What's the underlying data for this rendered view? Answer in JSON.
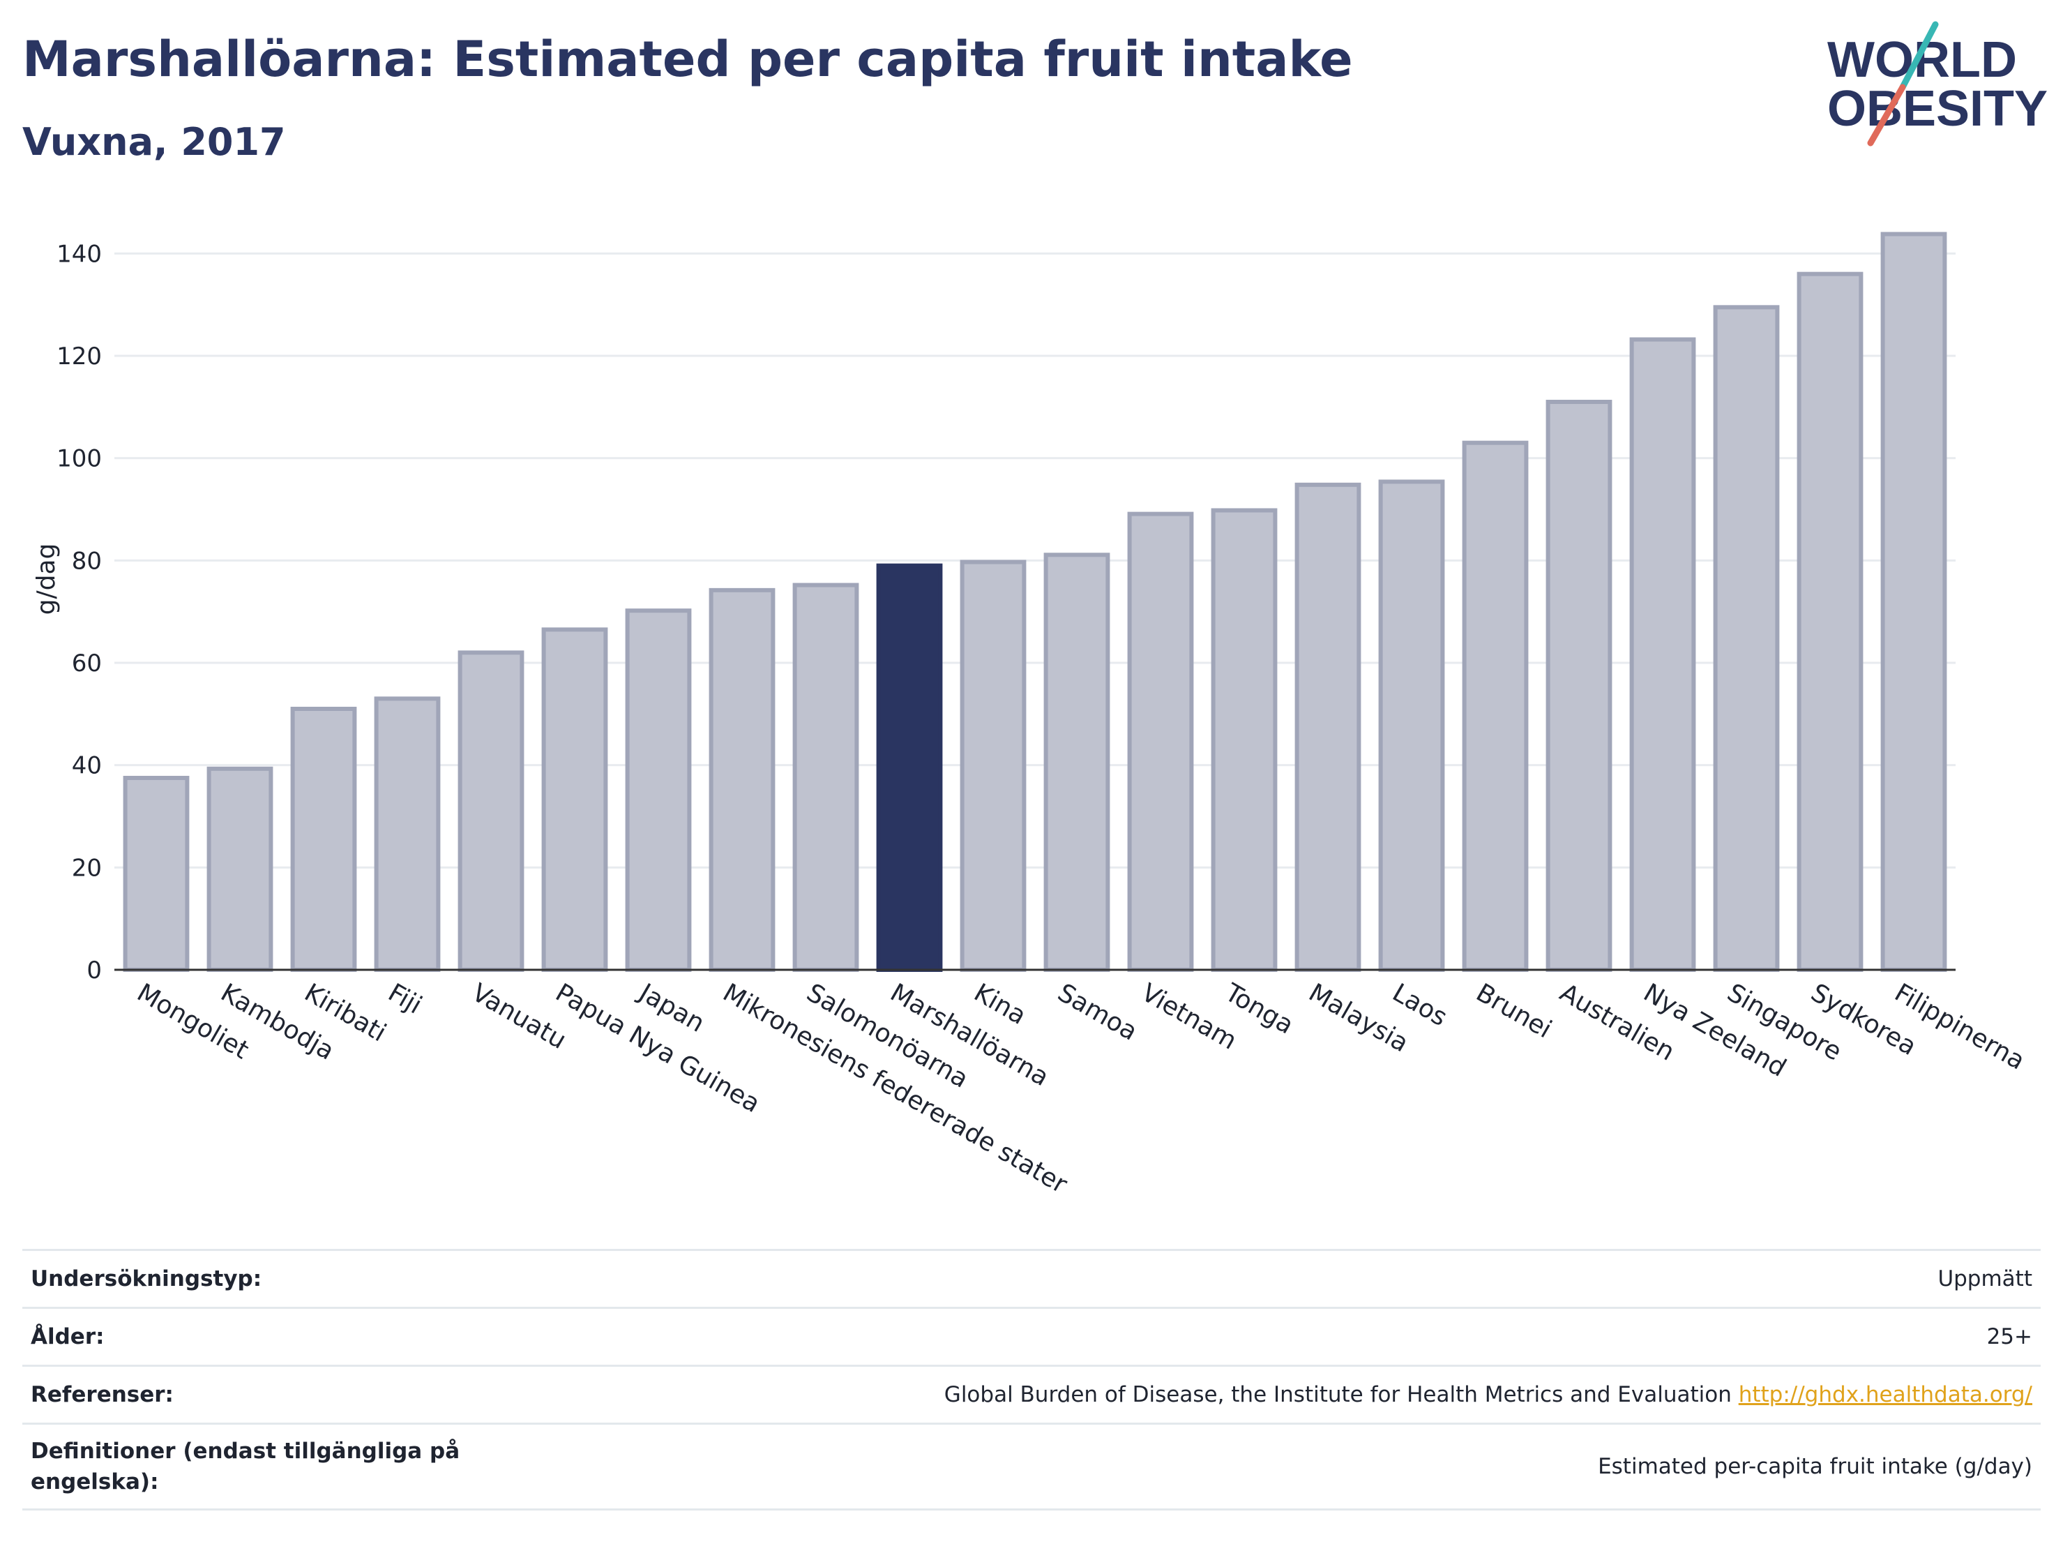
{
  "title": "Marshallöarna: Estimated per capita fruit intake",
  "subtitle": "Vuxna, 2017",
  "logo": {
    "line1": "WORLD",
    "line2": "OBESITY",
    "slash_colors": [
      "#38b7b4",
      "#e06a5a"
    ],
    "text_color": "#2a3561"
  },
  "colors": {
    "highlight": "#2a3561",
    "bar_fill": "#bfc2cf",
    "bar_stroke": "#a0a5b8",
    "grid": "#e8ebef"
  },
  "chart_data": {
    "type": "bar",
    "title": "Marshallöarna: Estimated per capita fruit intake",
    "subtitle": "Vuxna, 2017",
    "xlabel": "",
    "ylabel": "g/dag",
    "ylim": [
      0,
      150
    ],
    "yticks": [
      0,
      20,
      40,
      60,
      80,
      100,
      120,
      140
    ],
    "grid": true,
    "highlight": "Marshallöarna",
    "categories": [
      "Mongoliet",
      "Kambodja",
      "Kiribati",
      "Fiji",
      "Vanuatu",
      "Papua Nya Guinea",
      "Japan",
      "Mikronesiens federerade stater",
      "Salomonöarna",
      "Marshallöarna",
      "Kina",
      "Samoa",
      "Vietnam",
      "Tonga",
      "Malaysia",
      "Laos",
      "Brunei",
      "Australien",
      "Nya Zeeland",
      "Singapore",
      "Sydkorea",
      "Filippinerna"
    ],
    "values": [
      37.5,
      39.3,
      51,
      53,
      62,
      66.5,
      70.2,
      74.2,
      75.2,
      79,
      79.7,
      81.1,
      89.1,
      89.8,
      94.8,
      95.4,
      103,
      111,
      123.2,
      129.5,
      136,
      143.8
    ]
  },
  "info": [
    {
      "label": "Undersökningstyp:",
      "value": "Uppmätt"
    },
    {
      "label": "Ålder:",
      "value": "25+"
    },
    {
      "label": "Referenser:",
      "value": "Global Burden of Disease, the Institute for Health Metrics and Evaluation",
      "link": "http://ghdx.healthdata.org/"
    },
    {
      "label": "Definitioner (endast tillgängliga på engelska):",
      "value": "Estimated per-capita fruit intake (g/day)"
    }
  ]
}
